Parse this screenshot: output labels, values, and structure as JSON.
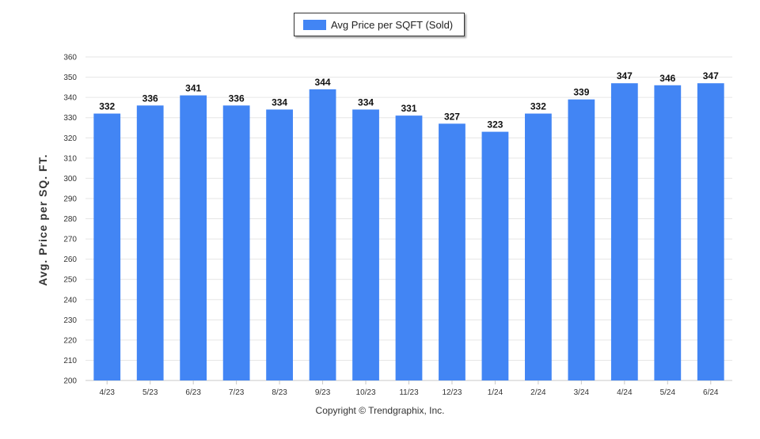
{
  "chart_data": {
    "type": "bar",
    "categories": [
      "4/23",
      "5/23",
      "6/23",
      "7/23",
      "8/23",
      "9/23",
      "10/23",
      "11/23",
      "12/23",
      "1/24",
      "2/24",
      "3/24",
      "4/24",
      "5/24",
      "6/24"
    ],
    "series": [
      {
        "name": "Avg Price per SQFT (Sold)",
        "values": [
          332,
          336,
          341,
          336,
          334,
          344,
          334,
          331,
          327,
          323,
          332,
          339,
          347,
          346,
          347
        ]
      }
    ],
    "ylabel": "Avg. Price per SQ. FT.",
    "ylim": [
      200,
      360
    ],
    "yticks": [
      200,
      210,
      220,
      230,
      240,
      250,
      260,
      270,
      280,
      290,
      300,
      310,
      320,
      330,
      340,
      350,
      360
    ],
    "grid": true,
    "legend_position": "top-center",
    "bar_color": "#4285f4"
  },
  "footer": {
    "copyright": "Copyright © Trendgraphix, Inc."
  }
}
